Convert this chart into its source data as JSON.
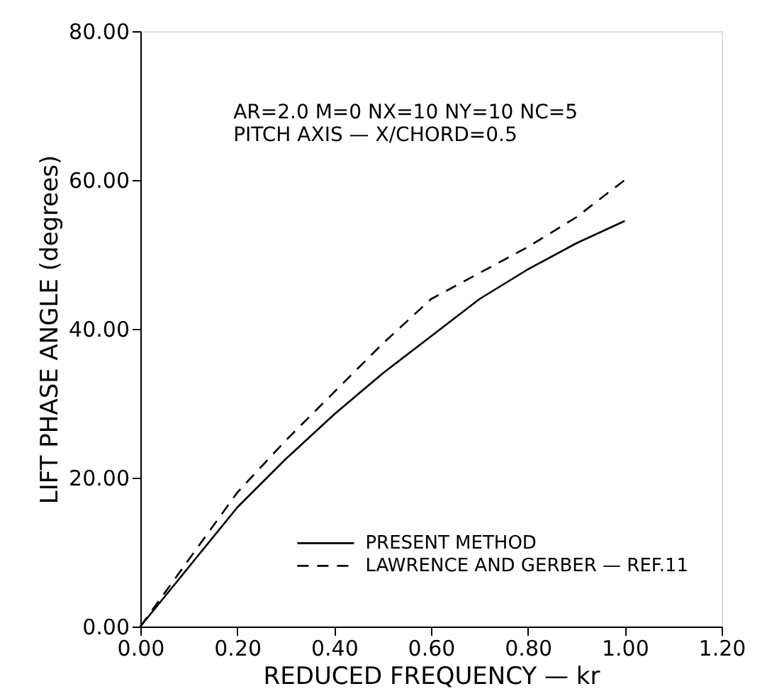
{
  "chart_data": {
    "type": "line",
    "xlabel": "REDUCED FREQUENCY  —  kr",
    "ylabel": "LIFT PHASE ANGLE  (degrees)",
    "annotations": [
      "AR=2.0  M=0  NX=10  NY=10  NC=5",
      "PITCH  AXIS  —  X/CHORD=0.5"
    ],
    "x": [
      0,
      0.1,
      0.2,
      0.3,
      0.4,
      0.5,
      0.6,
      0.7,
      0.8,
      0.9,
      1.0
    ],
    "series": [
      {
        "name": "PRESENT METHOD",
        "color": "#000000",
        "line_style": "solid",
        "values": [
          0,
          8,
          16,
          22.5,
          28.5,
          34,
          39,
          44,
          48,
          51.5,
          54.5
        ]
      },
      {
        "name": "LAWRENCE AND GERBER  —  REF.11",
        "color": "#000000",
        "line_style": "dashed",
        "values": [
          0,
          9,
          18,
          25,
          31.5,
          38,
          44,
          47.5,
          51,
          55,
          60
        ]
      }
    ],
    "xlim": [
      0,
      1.2
    ],
    "ylim": [
      0,
      80
    ],
    "xticks": [
      {
        "value": 0,
        "label": "0.00"
      },
      {
        "value": 0.2,
        "label": "0.20"
      },
      {
        "value": 0.4,
        "label": "0.40"
      },
      {
        "value": 0.6,
        "label": "0.60"
      },
      {
        "value": 0.8,
        "label": "0.80"
      },
      {
        "value": 1.0,
        "label": "1.00"
      },
      {
        "value": 1.2,
        "label": "1.20"
      }
    ],
    "yticks": [
      {
        "value": 0,
        "label": "0.00"
      },
      {
        "value": 20,
        "label": "20.00"
      },
      {
        "value": 40,
        "label": "40.00"
      },
      {
        "value": 60,
        "label": "60.00"
      },
      {
        "value": 80,
        "label": "80.00"
      }
    ],
    "grid": false,
    "legend": "bottom right",
    "marker": "none"
  }
}
